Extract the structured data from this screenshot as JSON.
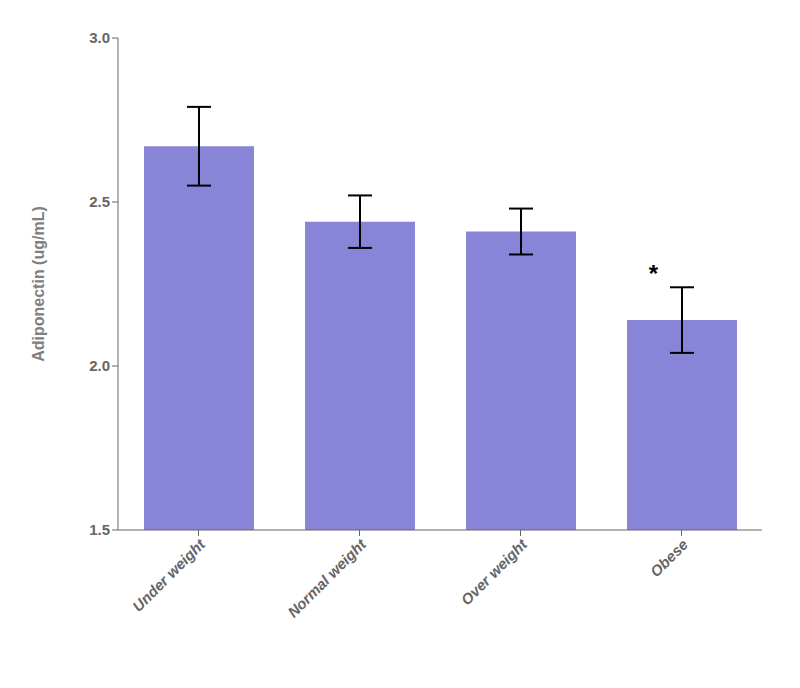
{
  "chart_data": {
    "type": "bar",
    "categories": [
      "Under weight",
      "Normal weight",
      "Over weight",
      "Obese"
    ],
    "values": [
      2.67,
      2.44,
      2.41,
      2.14
    ],
    "errors": [
      0.12,
      0.08,
      0.07,
      0.1
    ],
    "ylabel": "Adiponectin (ug/mL)",
    "ylim": [
      1.5,
      3.0
    ],
    "yticks": [
      1.5,
      {
        "value": 2.0,
        "label": "2.0"
      },
      2.5,
      {
        "value": 3.0,
        "label": "3.0"
      }
    ],
    "grid": false,
    "annotations": [
      {
        "text": "*",
        "category": "Obese"
      }
    ]
  }
}
